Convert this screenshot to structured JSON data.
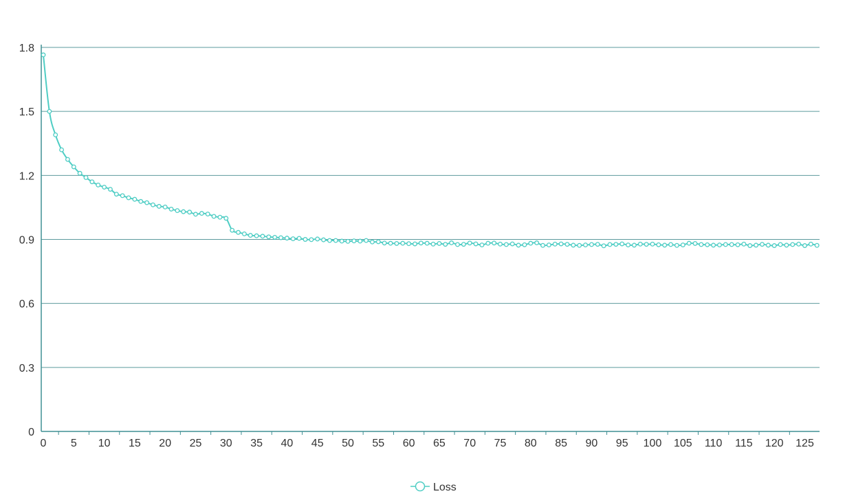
{
  "chart_data": {
    "type": "line",
    "title": "",
    "xlabel": "",
    "ylabel": "",
    "xlim": [
      0,
      127
    ],
    "ylim": [
      0,
      1.8
    ],
    "x_ticks": [
      "0",
      "5",
      "10",
      "15",
      "20",
      "25",
      "30",
      "35",
      "40",
      "45",
      "50",
      "55",
      "60",
      "65",
      "70",
      "75",
      "80",
      "85",
      "90",
      "95",
      "100",
      "105",
      "110",
      "115",
      "120",
      "125"
    ],
    "y_ticks": [
      "0",
      "0.3",
      "0.6",
      "0.9",
      "1.2",
      "1.5",
      "1.8"
    ],
    "grid": true,
    "legend": {
      "position": "bottom-center",
      "marker": "circle-line"
    },
    "colors": {
      "series": "#4ecdc4",
      "grid": "#5b9a9c",
      "axis": "#3f8f93",
      "text": "#333333"
    },
    "x": [
      0,
      1,
      2,
      3,
      4,
      5,
      6,
      7,
      8,
      9,
      10,
      11,
      12,
      13,
      14,
      15,
      16,
      17,
      18,
      19,
      20,
      21,
      22,
      23,
      24,
      25,
      26,
      27,
      28,
      29,
      30,
      31,
      32,
      33,
      34,
      35,
      36,
      37,
      38,
      39,
      40,
      41,
      42,
      43,
      44,
      45,
      46,
      47,
      48,
      49,
      50,
      51,
      52,
      53,
      54,
      55,
      56,
      57,
      58,
      59,
      60,
      61,
      62,
      63,
      64,
      65,
      66,
      67,
      68,
      69,
      70,
      71,
      72,
      73,
      74,
      75,
      76,
      77,
      78,
      79,
      80,
      81,
      82,
      83,
      84,
      85,
      86,
      87,
      88,
      89,
      90,
      91,
      92,
      93,
      94,
      95,
      96,
      97,
      98,
      99,
      100,
      101,
      102,
      103,
      104,
      105,
      106,
      107,
      108,
      109,
      110,
      111,
      112,
      113,
      114,
      115,
      116,
      117,
      118,
      119,
      120,
      121,
      122,
      123,
      124,
      125,
      126,
      127
    ],
    "series": [
      {
        "name": "Loss",
        "values": [
          1.765,
          1.5,
          1.39,
          1.32,
          1.275,
          1.24,
          1.21,
          1.19,
          1.17,
          1.155,
          1.145,
          1.135,
          1.112,
          1.105,
          1.095,
          1.088,
          1.078,
          1.072,
          1.062,
          1.055,
          1.052,
          1.042,
          1.035,
          1.03,
          1.028,
          1.018,
          1.022,
          1.019,
          1.008,
          1.004,
          0.999,
          0.943,
          0.933,
          0.926,
          0.919,
          0.917,
          0.915,
          0.912,
          0.91,
          0.908,
          0.906,
          0.903,
          0.905,
          0.9,
          0.899,
          0.902,
          0.898,
          0.895,
          0.895,
          0.892,
          0.891,
          0.893,
          0.892,
          0.895,
          0.888,
          0.889,
          0.883,
          0.882,
          0.881,
          0.882,
          0.88,
          0.879,
          0.883,
          0.882,
          0.878,
          0.881,
          0.877,
          0.884,
          0.876,
          0.877,
          0.883,
          0.879,
          0.874,
          0.882,
          0.883,
          0.878,
          0.876,
          0.879,
          0.873,
          0.875,
          0.882,
          0.884,
          0.872,
          0.874,
          0.878,
          0.879,
          0.877,
          0.873,
          0.872,
          0.874,
          0.876,
          0.877,
          0.87,
          0.876,
          0.877,
          0.879,
          0.874,
          0.873,
          0.878,
          0.877,
          0.878,
          0.875,
          0.873,
          0.876,
          0.872,
          0.874,
          0.882,
          0.881,
          0.876,
          0.875,
          0.873,
          0.874,
          0.876,
          0.876,
          0.875,
          0.878,
          0.871,
          0.873,
          0.877,
          0.873,
          0.871,
          0.876,
          0.873,
          0.876,
          0.878,
          0.871,
          0.878,
          0.872
        ]
      }
    ]
  }
}
